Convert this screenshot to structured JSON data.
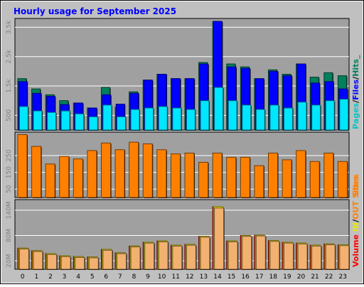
{
  "chart_data": [
    {
      "type": "bar",
      "panel": "hits-files-pages",
      "title": "Hourly usage for September 2025",
      "categories": [
        "0",
        "1",
        "2",
        "3",
        "4",
        "5",
        "6",
        "7",
        "8",
        "9",
        "10",
        "11",
        "12",
        "13",
        "14",
        "15",
        "16",
        "17",
        "18",
        "19",
        "20",
        "21",
        "22",
        "23"
      ],
      "yticks": [
        "500",
        "1.5k",
        "2.5k",
        "3.5k"
      ],
      "ylim": [
        0,
        3800
      ],
      "ylabel_parts": [
        "Pages",
        "/",
        "Files",
        "/",
        "Hits",
        "_"
      ],
      "series": [
        {
          "name": "Hits",
          "color": "#00805c",
          "values": [
            1750,
            1400,
            1200,
            1000,
            920,
            750,
            1450,
            780,
            1300,
            1700,
            1900,
            1750,
            1750,
            2300,
            3700,
            2250,
            2150,
            1750,
            2050,
            1900,
            2250,
            1800,
            1950,
            1850
          ]
        },
        {
          "name": "Files",
          "color": "#0000ff",
          "values": [
            1650,
            1250,
            1150,
            870,
            920,
            750,
            1200,
            880,
            1250,
            1700,
            1900,
            1750,
            1750,
            2250,
            3700,
            2150,
            2100,
            1750,
            2000,
            1850,
            2250,
            1600,
            1650,
            1400
          ]
        },
        {
          "name": "Pages",
          "color": "#00e6ff",
          "values": [
            800,
            650,
            600,
            650,
            550,
            450,
            850,
            450,
            700,
            750,
            800,
            750,
            700,
            1000,
            1450,
            1000,
            850,
            700,
            850,
            750,
            950,
            850,
            1000,
            1050
          ]
        }
      ]
    },
    {
      "type": "bar",
      "panel": "sites",
      "categories": [
        "0",
        "1",
        "2",
        "3",
        "4",
        "5",
        "6",
        "7",
        "8",
        "9",
        "10",
        "11",
        "12",
        "13",
        "14",
        "15",
        "16",
        "17",
        "18",
        "19",
        "20",
        "21",
        "22",
        "23"
      ],
      "yticks": [
        "50",
        "150",
        "250"
      ],
      "ylim": [
        0,
        390
      ],
      "ylabel": "Sites",
      "series": [
        {
          "name": "Sites",
          "color": "#ff8000",
          "values": [
            375,
            305,
            200,
            245,
            230,
            280,
            325,
            285,
            330,
            320,
            285,
            260,
            265,
            210,
            265,
            240,
            240,
            190,
            265,
            225,
            280,
            215,
            265,
            215
          ]
        }
      ]
    },
    {
      "type": "bar",
      "panel": "volume",
      "categories": [
        "0",
        "1",
        "2",
        "3",
        "4",
        "5",
        "6",
        "7",
        "8",
        "9",
        "10",
        "11",
        "12",
        "13",
        "14",
        "15",
        "16",
        "17",
        "18",
        "19",
        "20",
        "21",
        "22",
        "23"
      ],
      "yticks": [
        "20M",
        "80M",
        "140M"
      ],
      "ylim": [
        0,
        165
      ],
      "ylabel_parts": [
        "Volume",
        "IN",
        "/",
        "OUT",
        "Sites"
      ],
      "series": [
        {
          "name": "Volume",
          "color": "#ff0000",
          "values": [
            50,
            44,
            37,
            32,
            30,
            29,
            47,
            39,
            55,
            64,
            67,
            57,
            59,
            78,
            148,
            67,
            80,
            81,
            68,
            64,
            62,
            57,
            60,
            58
          ]
        },
        {
          "name": "IN",
          "color": "#ffff00",
          "values": [
            50,
            44,
            37,
            32,
            30,
            29,
            47,
            39,
            55,
            64,
            67,
            57,
            59,
            78,
            148,
            67,
            80,
            81,
            68,
            64,
            62,
            57,
            60,
            58
          ]
        },
        {
          "name": "OUT",
          "color": "#f2b170",
          "values": [
            48,
            42,
            35,
            30,
            28,
            27,
            45,
            37,
            53,
            62,
            65,
            55,
            57,
            76,
            145,
            65,
            78,
            79,
            66,
            62,
            60,
            55,
            58,
            56
          ]
        }
      ]
    }
  ]
}
